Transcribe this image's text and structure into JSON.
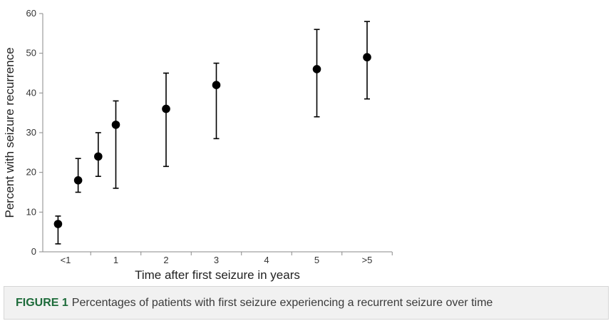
{
  "colors": {
    "marker": "#000000",
    "axis": "#888888",
    "caption_label": "#1d6b3a"
  },
  "caption": {
    "label": "FIGURE 1",
    "text": "Percentages of patients with first seizure experiencing a recurrent seizure over time"
  },
  "chart_data": {
    "type": "scatter",
    "title": "",
    "xlabel": "Time after first seizure in years",
    "ylabel": "Percent with seizure recurrence",
    "ylim": [
      0,
      60
    ],
    "yticks": [
      0,
      10,
      20,
      30,
      40,
      50,
      60
    ],
    "xlim": [
      -0.25,
      6.25
    ],
    "xticks": [
      {
        "pos": 0,
        "label": "<1"
      },
      {
        "pos": 1,
        "label": "1"
      },
      {
        "pos": 2,
        "label": "2"
      },
      {
        "pos": 3,
        "label": "3"
      },
      {
        "pos": 4,
        "label": "4"
      },
      {
        "pos": 5,
        "label": "5"
      },
      {
        "pos": 6,
        "label": ">5"
      }
    ],
    "points": [
      {
        "x": -0.15,
        "y": 7,
        "low": 2,
        "high": 9
      },
      {
        "x": 0.25,
        "y": 18,
        "low": 15,
        "high": 23.5
      },
      {
        "x": 0.65,
        "y": 24,
        "low": 19,
        "high": 30
      },
      {
        "x": 1.0,
        "y": 32,
        "low": 16,
        "high": 38
      },
      {
        "x": 2.0,
        "y": 36,
        "low": 21.5,
        "high": 45
      },
      {
        "x": 3.0,
        "y": 42,
        "low": 28.5,
        "high": 47.5
      },
      {
        "x": 5.0,
        "y": 46,
        "low": 34,
        "high": 56
      },
      {
        "x": 6.0,
        "y": 49,
        "low": 38.5,
        "high": 58
      }
    ]
  }
}
